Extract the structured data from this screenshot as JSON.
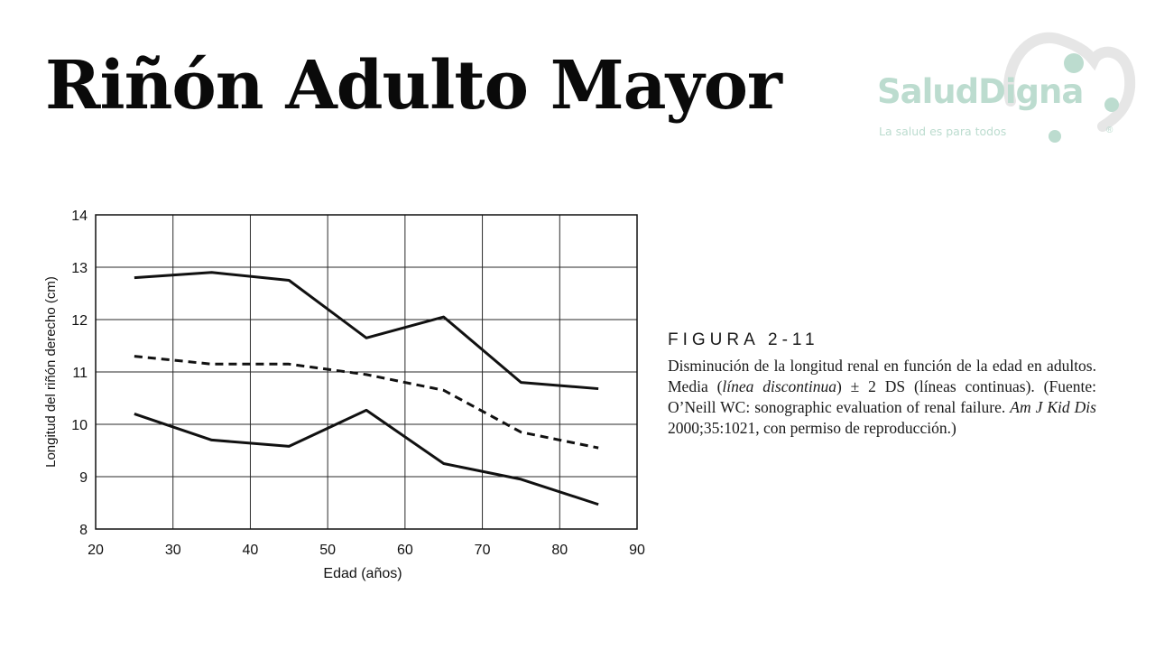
{
  "slide": {
    "title": "Riñón Adulto Mayor"
  },
  "logo": {
    "name_part1": "Salud",
    "name_part2": "Digna",
    "tagline": "La salud es para todos",
    "registered": "®",
    "color": "#bcdccf"
  },
  "caption": {
    "figure_label": "FIGURA  2-11",
    "text_1": "Disminución de la longitud renal en función de la edad en adultos. Media (",
    "text_italic_1": "línea discontinua",
    "text_2": ") ± 2 DS (líneas continuas). (Fuente: O’Neill WC: sonographic evaluation of renal failure. ",
    "text_italic_2": "Am J Kid Dis",
    "text_3": " 2000;35:1021, con permiso de reproducción.)"
  },
  "chart_data": {
    "type": "line",
    "xlabel": "Edad (años)",
    "ylabel": "Longitud del riñón derecho (cm)",
    "xlim": [
      20,
      90
    ],
    "ylim": [
      8,
      14
    ],
    "xticks": [
      20,
      30,
      40,
      50,
      60,
      70,
      80,
      90
    ],
    "yticks": [
      8,
      9,
      10,
      11,
      12,
      13,
      14
    ],
    "grid": true,
    "x": [
      25,
      35,
      45,
      55,
      65,
      75,
      85
    ],
    "series": [
      {
        "values": [
          12.8,
          12.9,
          12.75,
          11.65,
          12.05,
          10.8,
          10.68
        ],
        "style": "solid"
      },
      {
        "values": [
          11.3,
          11.15,
          11.15,
          10.95,
          10.65,
          9.85,
          9.55
        ],
        "style": "dashed"
      },
      {
        "values": [
          10.2,
          9.7,
          9.58,
          10.27,
          9.25,
          8.95,
          8.47
        ],
        "style": "solid"
      }
    ]
  }
}
